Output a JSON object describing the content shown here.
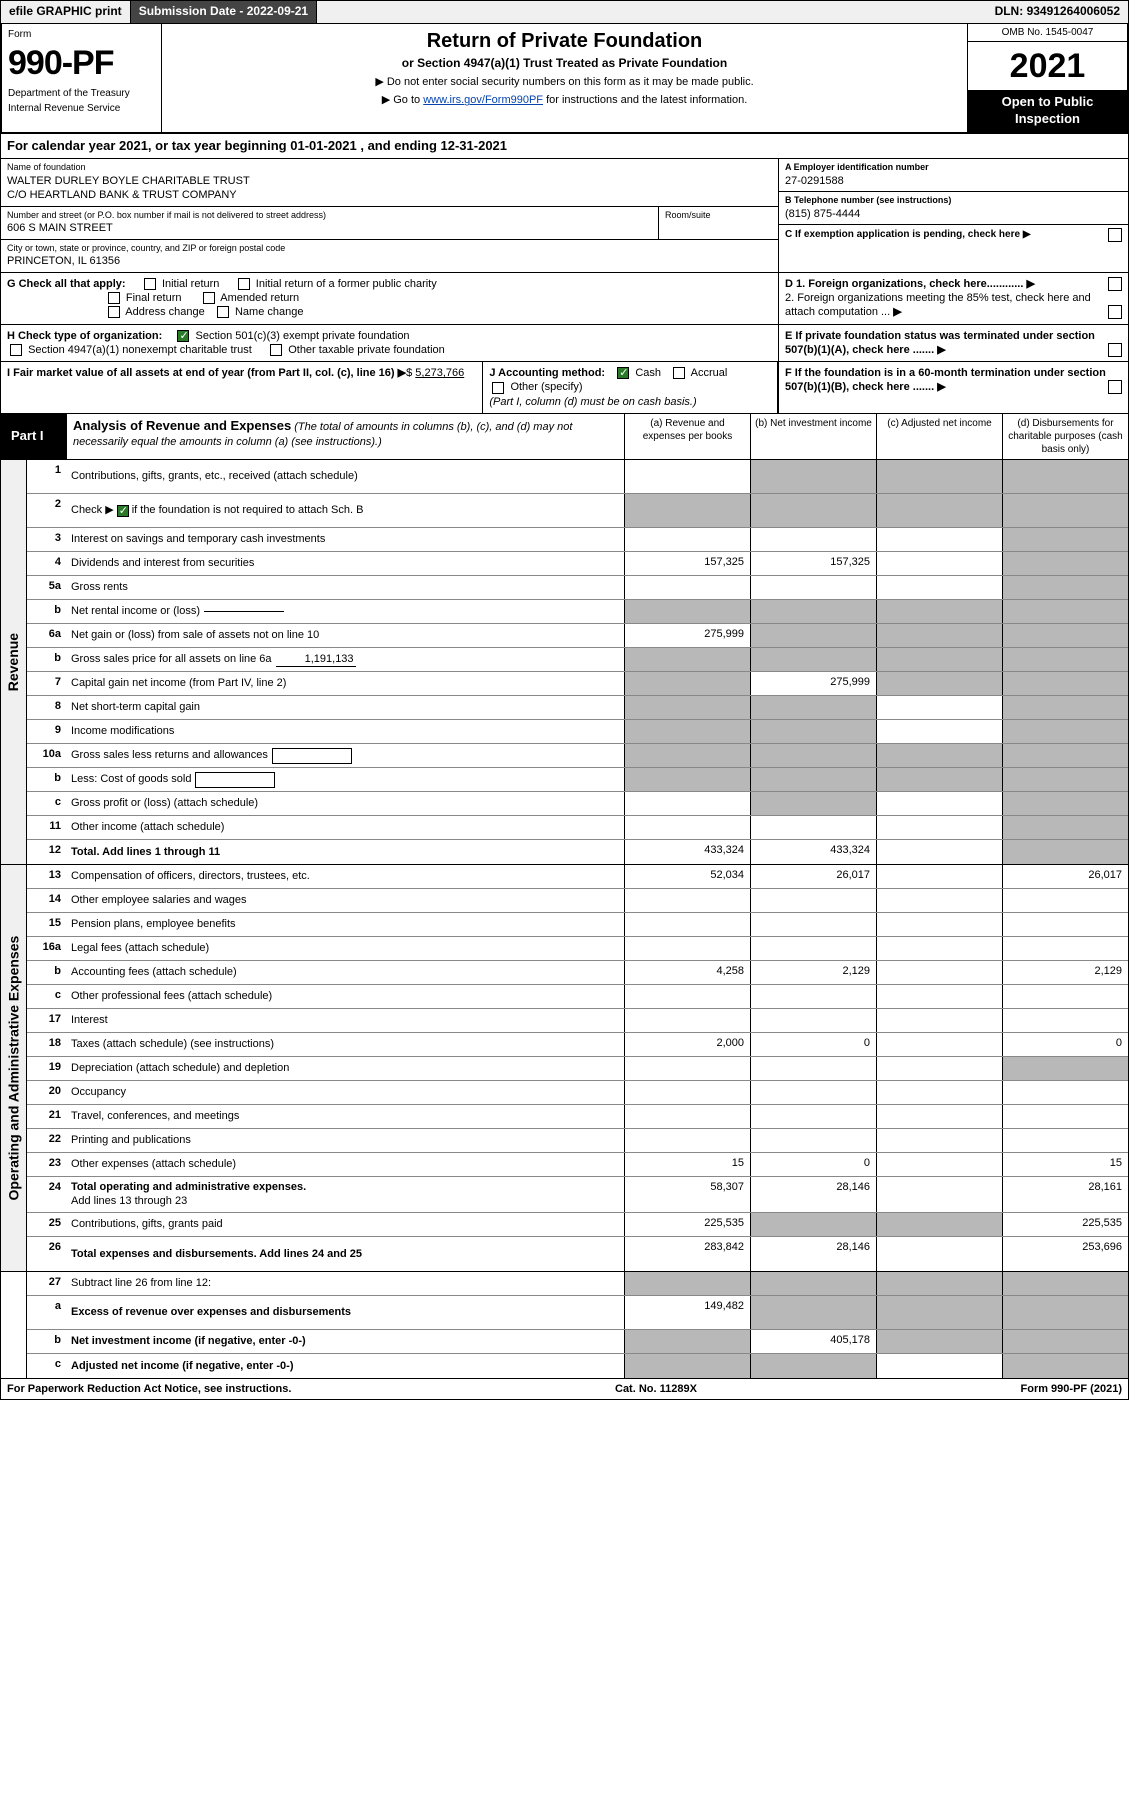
{
  "topbar": {
    "efile": "efile GRAPHIC print",
    "sub_date_label": "Submission Date - ",
    "sub_date": "2022-09-21",
    "dln_label": "DLN: ",
    "dln": "93491264006052"
  },
  "header": {
    "form_label": "Form",
    "form_num": "990-PF",
    "dept1": "Department of the Treasury",
    "dept2": "Internal Revenue Service",
    "title": "Return of Private Foundation",
    "subtitle": "or Section 4947(a)(1) Trust Treated as Private Foundation",
    "note1": "▶ Do not enter social security numbers on this form as it may be made public.",
    "note2_pre": "▶ Go to ",
    "note2_link": "www.irs.gov/Form990PF",
    "note2_post": " for instructions and the latest information.",
    "omb": "OMB No. 1545-0047",
    "year": "2021",
    "open1": "Open to Public",
    "open2": "Inspection"
  },
  "calyear": {
    "text_pre": "For calendar year 2021, or tax year beginning ",
    "begin": "01-01-2021",
    "text_mid": " , and ending ",
    "end": "12-31-2021"
  },
  "entity": {
    "name_lbl": "Name of foundation",
    "name1": "WALTER DURLEY BOYLE CHARITABLE TRUST",
    "name2": "C/O HEARTLAND BANK & TRUST COMPANY",
    "addr_lbl": "Number and street (or P.O. box number if mail is not delivered to street address)",
    "addr": "606 S MAIN STREET",
    "room_lbl": "Room/suite",
    "city_lbl": "City or town, state or province, country, and ZIP or foreign postal code",
    "city": "PRINCETON, IL  61356",
    "ein_lbl": "A Employer identification number",
    "ein": "27-0291588",
    "phone_lbl": "B Telephone number (see instructions)",
    "phone": "(815) 875-4444",
    "c_lbl": "C If exemption application is pending, check here",
    "d1": "D 1. Foreign organizations, check here............",
    "d2": "2. Foreign organizations meeting the 85% test, check here and attach computation ...",
    "e_lbl": "E  If private foundation status was terminated under section 507(b)(1)(A), check here .......",
    "f_lbl": "F  If the foundation is in a 60-month termination under section 507(b)(1)(B), check here .......",
    "g_lbl": "G Check all that apply:",
    "g_initial": "Initial return",
    "g_initial_former": "Initial return of a former public charity",
    "g_final": "Final return",
    "g_amended": "Amended return",
    "g_addr": "Address change",
    "g_name": "Name change",
    "h_lbl": "H Check type of organization:",
    "h_501c3": "Section 501(c)(3) exempt private foundation",
    "h_4947": "Section 4947(a)(1) nonexempt charitable trust",
    "h_other_tax": "Other taxable private foundation",
    "i_lbl": "I Fair market value of all assets at end of year (from Part II, col. (c), line 16)",
    "i_val": "5,273,766",
    "j_lbl": "J Accounting method:",
    "j_cash": "Cash",
    "j_accrual": "Accrual",
    "j_other": "Other (specify)",
    "j_note": "(Part I, column (d) must be on cash basis.)"
  },
  "part1": {
    "label": "Part I",
    "title": "Analysis of Revenue and Expenses",
    "title_note": " (The total of amounts in columns (b), (c), and (d) may not necessarily equal the amounts in column (a) (see instructions).)",
    "col_a": "(a)   Revenue and expenses per books",
    "col_b": "(b)   Net investment income",
    "col_c": "(c)   Adjusted net income",
    "col_d": "(d)   Disbursements for charitable purposes (cash basis only)"
  },
  "revenue_label": "Revenue",
  "expenses_label": "Operating and Administrative Expenses",
  "lines": {
    "l1": "Contributions, gifts, grants, etc., received (attach schedule)",
    "l2_pre": "Check ▶",
    "l2_post": " if the foundation is not required to attach Sch. B",
    "l3": "Interest on savings and temporary cash investments",
    "l4": "Dividends and interest from securities",
    "l5a": "Gross rents",
    "l5b": "Net rental income or (loss)",
    "l6a": "Net gain or (loss) from sale of assets not on line 10",
    "l6b_pre": "Gross sales price for all assets on line 6a",
    "l6b_val": "1,191,133",
    "l7": "Capital gain net income (from Part IV, line 2)",
    "l8": "Net short-term capital gain",
    "l9": "Income modifications",
    "l10a": "Gross sales less returns and allowances",
    "l10b": "Less: Cost of goods sold",
    "l10c": "Gross profit or (loss) (attach schedule)",
    "l11": "Other income (attach schedule)",
    "l12": "Total. Add lines 1 through 11",
    "l13": "Compensation of officers, directors, trustees, etc.",
    "l14": "Other employee salaries and wages",
    "l15": "Pension plans, employee benefits",
    "l16a": "Legal fees (attach schedule)",
    "l16b": "Accounting fees (attach schedule)",
    "l16c": "Other professional fees (attach schedule)",
    "l17": "Interest",
    "l18": "Taxes (attach schedule) (see instructions)",
    "l19": "Depreciation (attach schedule) and depletion",
    "l20": "Occupancy",
    "l21": "Travel, conferences, and meetings",
    "l22": "Printing and publications",
    "l23": "Other expenses (attach schedule)",
    "l24": "Total operating and administrative expenses.",
    "l24b": "Add lines 13 through 23",
    "l25": "Contributions, gifts, grants paid",
    "l26": "Total expenses and disbursements. Add lines 24 and 25",
    "l27": "Subtract line 26 from line 12:",
    "l27a": "Excess of revenue over expenses and disbursements",
    "l27b": "Net investment income (if negative, enter -0-)",
    "l27c": "Adjusted net income (if negative, enter -0-)"
  },
  "vals": {
    "l4_a": "157,325",
    "l4_b": "157,325",
    "l6a_a": "275,999",
    "l7_b": "275,999",
    "l12_a": "433,324",
    "l12_b": "433,324",
    "l13_a": "52,034",
    "l13_b": "26,017",
    "l13_d": "26,017",
    "l16b_a": "4,258",
    "l16b_b": "2,129",
    "l16b_d": "2,129",
    "l18_a": "2,000",
    "l18_b": "0",
    "l18_d": "0",
    "l23_a": "15",
    "l23_b": "0",
    "l23_d": "15",
    "l24_a": "58,307",
    "l24_b": "28,146",
    "l24_d": "28,161",
    "l25_a": "225,535",
    "l25_d": "225,535",
    "l26_a": "283,842",
    "l26_b": "28,146",
    "l26_d": "253,696",
    "l27a_a": "149,482",
    "l27b_b": "405,178"
  },
  "footer": {
    "left": "For Paperwork Reduction Act Notice, see instructions.",
    "mid": "Cat. No. 11289X",
    "right": "Form 990-PF (2021)"
  }
}
